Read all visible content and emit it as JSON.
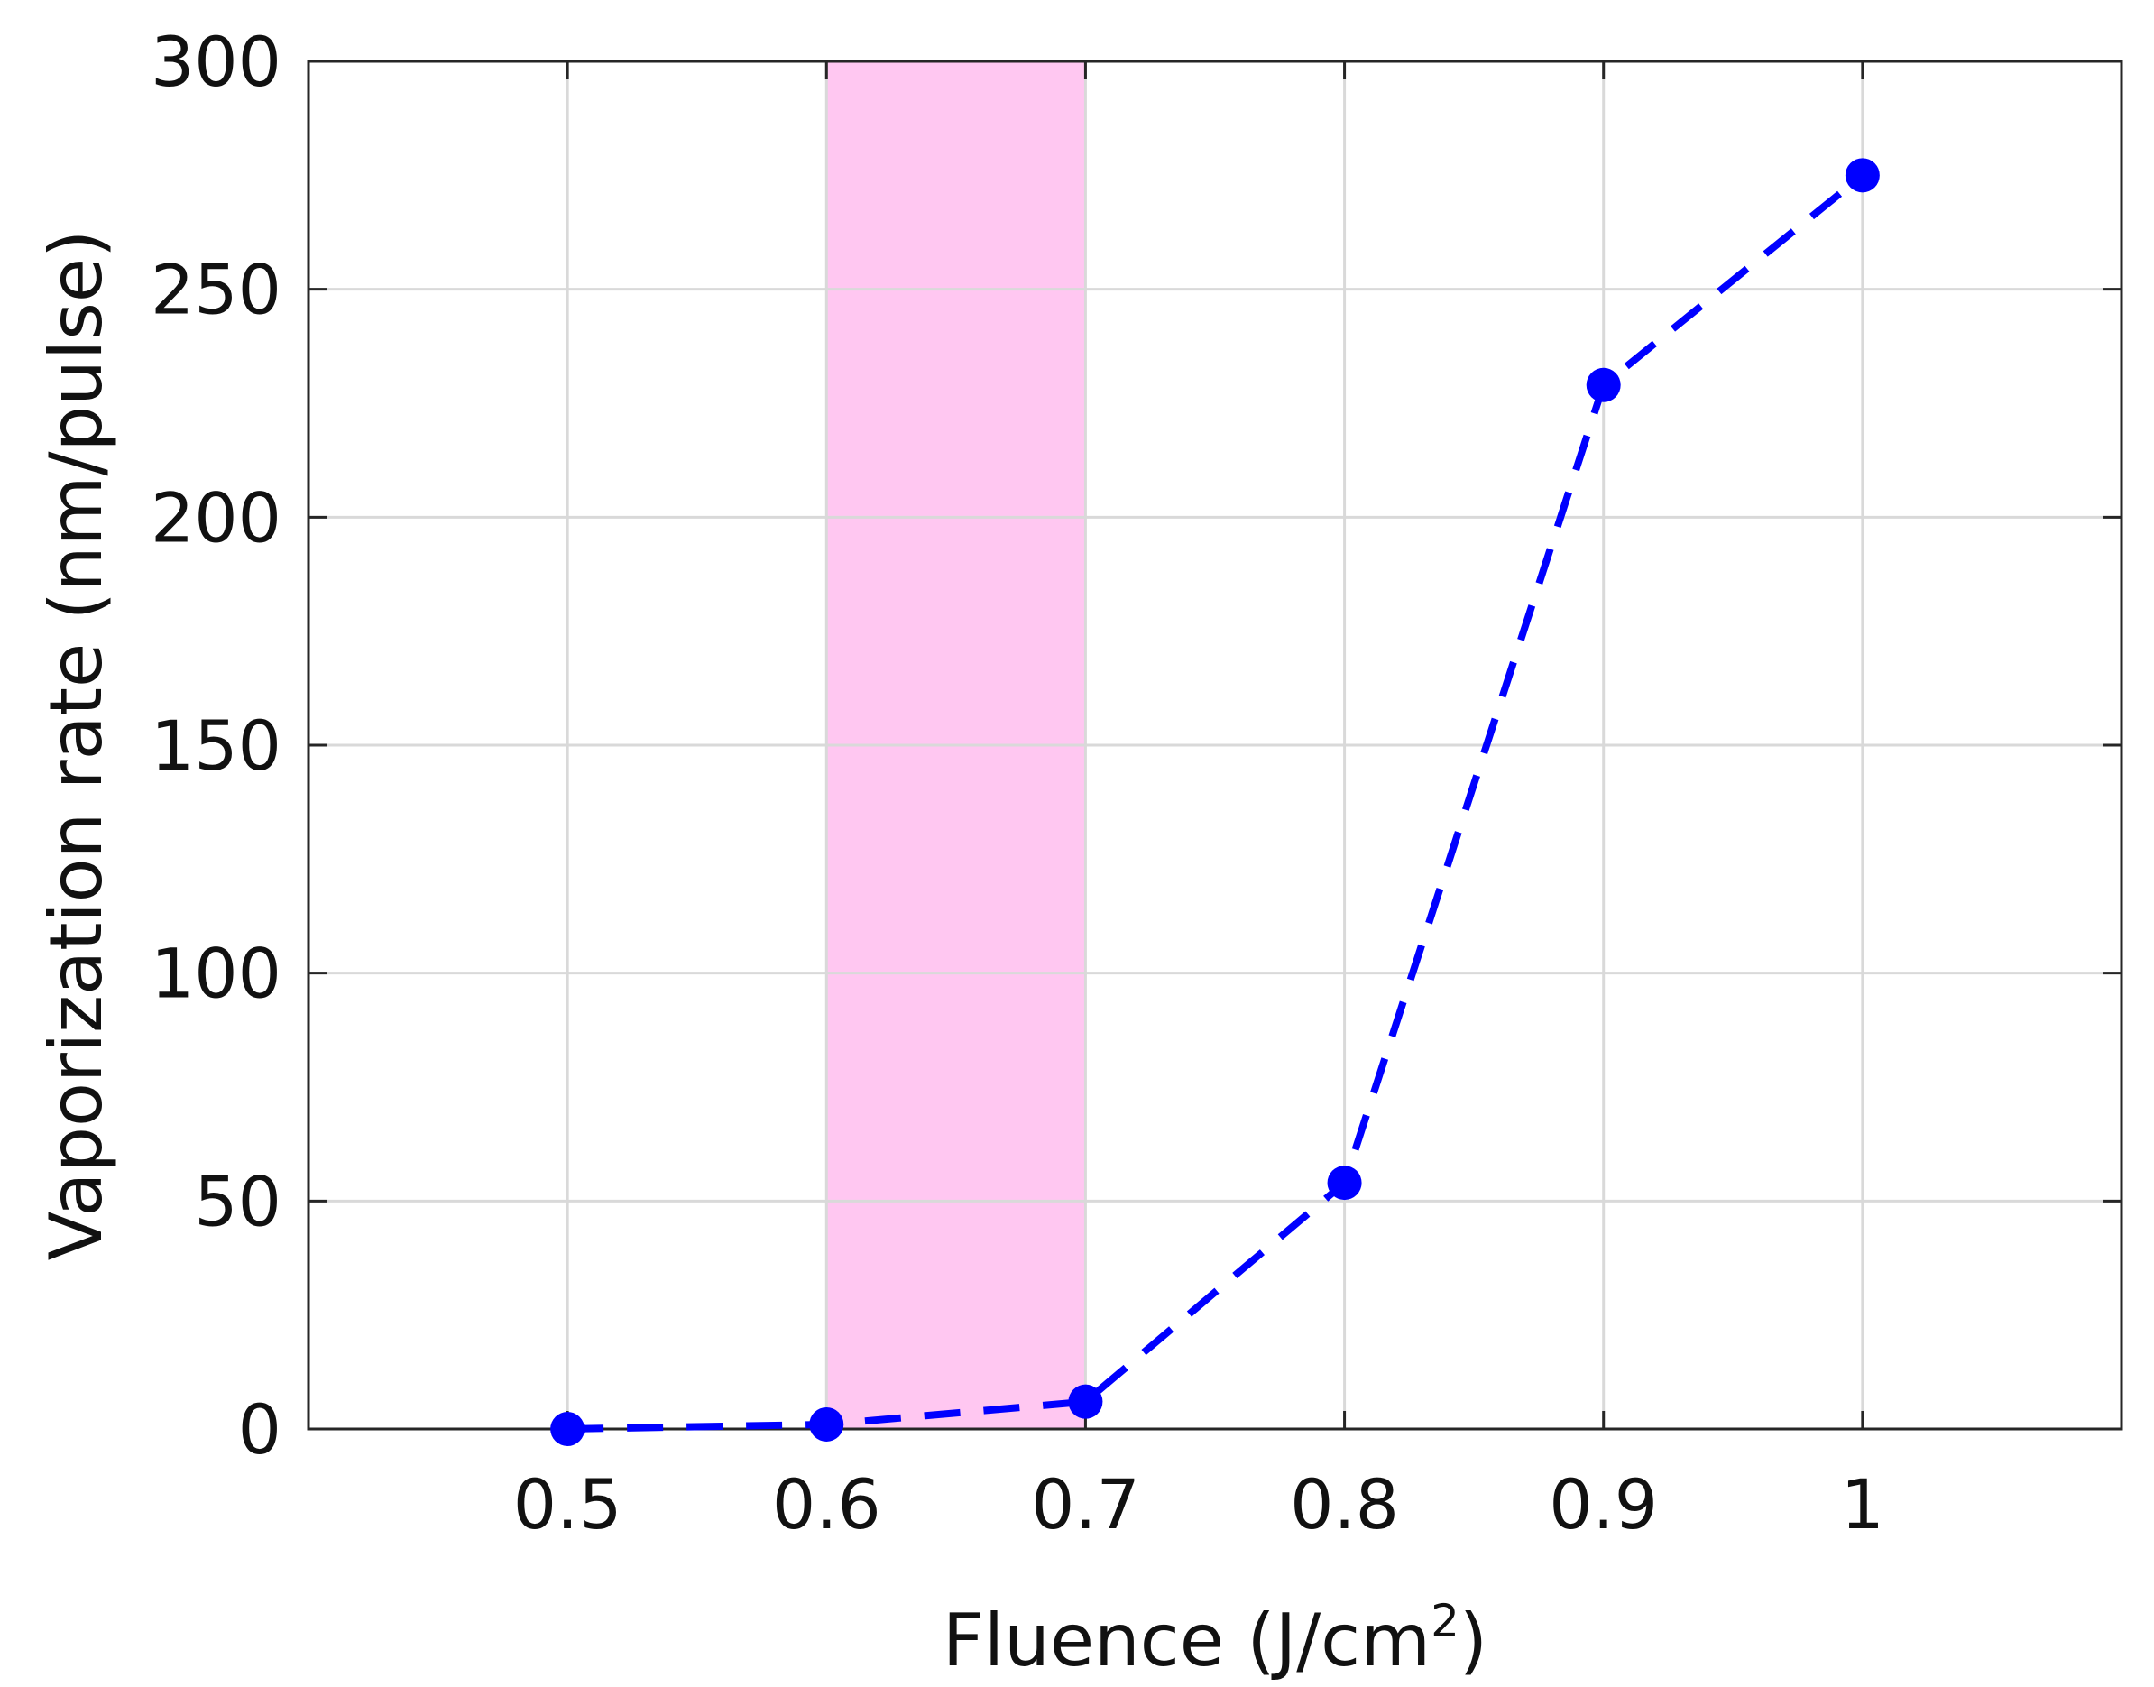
{
  "chart_data": {
    "type": "line",
    "xlabel": "Fluence (J/cm",
    "xlabel_superscript": "2",
    "xlabel_close": ")",
    "ylabel": "Vaporization rate (nm/pulse)",
    "xlim": [
      0.4,
      1.1
    ],
    "ylim": [
      0,
      300
    ],
    "x_ticks": [
      0.5,
      0.6,
      0.7,
      0.8,
      0.9,
      1.0
    ],
    "x_tick_labels": [
      "0.5",
      "0.6",
      "0.7",
      "0.8",
      "0.9",
      "1"
    ],
    "y_ticks": [
      0,
      50,
      100,
      150,
      200,
      250,
      300
    ],
    "y_tick_labels": [
      "0",
      "50",
      "100",
      "150",
      "200",
      "250",
      "300"
    ],
    "grid": true,
    "highlight_band": {
      "x_start": 0.6,
      "x_end": 0.7,
      "color": "#ff99e6"
    },
    "series": [
      {
        "x": [
          0.5,
          0.6,
          0.7,
          0.8,
          0.9,
          1.0
        ],
        "y": [
          0,
          1,
          6,
          54,
          229,
          275
        ],
        "color": "#0000ff",
        "line_style": "dashed",
        "marker": "circle"
      }
    ]
  }
}
